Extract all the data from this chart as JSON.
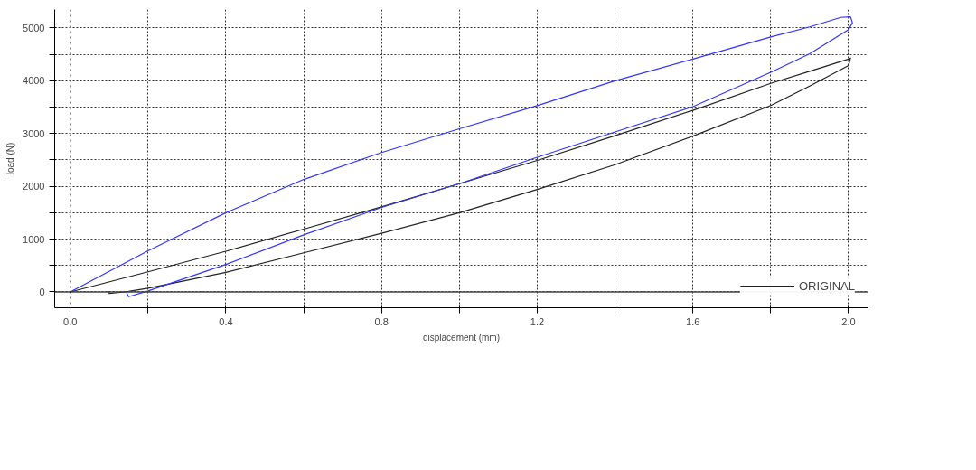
{
  "chart_data": {
    "type": "line",
    "xlabel": "displacement (mm)",
    "ylabel": "load (N)",
    "xlim": [
      -0.04,
      2.05
    ],
    "ylim": [
      -300,
      5350
    ],
    "xticks": [
      {
        "value": 0,
        "label": "0.0"
      },
      {
        "value": 0.2,
        "label": null
      },
      0.4,
      {
        "value": 0.6,
        "label": null
      },
      0.8,
      {
        "value": 1.0,
        "label": null
      },
      1.2,
      {
        "value": 1.4,
        "label": null
      },
      1.6,
      {
        "value": 1.8,
        "label": null
      },
      {
        "value": 2,
        "label": "2.0"
      }
    ],
    "yticks": [
      0,
      {
        "value": 500,
        "label": null
      },
      1000,
      {
        "value": 1500,
        "label": null
      },
      2000,
      {
        "value": 2500,
        "label": null
      },
      3000,
      {
        "value": 3500,
        "label": null
      },
      4000,
      {
        "value": 4500,
        "label": null
      },
      5000
    ],
    "grid": true,
    "legend": "bottom right",
    "line_style": "solid",
    "marker": "none",
    "ref_lines": [
      {
        "axis": "y",
        "value": 0,
        "line_style": "solid",
        "color": "#444444"
      },
      {
        "axis": "x",
        "value": 0,
        "line_style": "dotted",
        "color": "#000000"
      }
    ],
    "series": [
      {
        "name": "ORIGINAL",
        "color": "#222222",
        "x": [
          0,
          0.2,
          0.4,
          0.6,
          0.8,
          1.0,
          1.2,
          1.4,
          1.6,
          1.8,
          1.9,
          2.0,
          2.005,
          2.0,
          1.9,
          1.8,
          1.6,
          1.4,
          1.2,
          1.0,
          0.8,
          0.6,
          0.4,
          0.2,
          0.15,
          0.1,
          0.1
        ],
        "values": [
          0,
          380,
          770,
          1190,
          1610,
          2050,
          2490,
          2960,
          3440,
          3950,
          4180,
          4410,
          4430,
          4290,
          3900,
          3530,
          2950,
          2410,
          1940,
          1500,
          1110,
          740,
          370,
          70,
          10,
          -30,
          10
        ]
      },
      {
        "color": "#3333ff",
        "x": [
          0,
          0.2,
          0.4,
          0.6,
          0.8,
          1.0,
          1.2,
          1.4,
          1.6,
          1.8,
          1.9,
          1.98,
          2.005,
          2.01,
          2.0,
          1.9,
          1.8,
          1.6,
          1.4,
          1.2,
          1.0,
          0.8,
          0.6,
          0.4,
          0.2,
          0.15,
          0.145
        ],
        "values": [
          0,
          780,
          1500,
          2130,
          2640,
          3090,
          3530,
          4000,
          4410,
          4830,
          5020,
          5200,
          5210,
          5100,
          4970,
          4510,
          4160,
          3510,
          3030,
          2550,
          2050,
          1600,
          1080,
          520,
          20,
          -90,
          -20
        ]
      }
    ]
  }
}
